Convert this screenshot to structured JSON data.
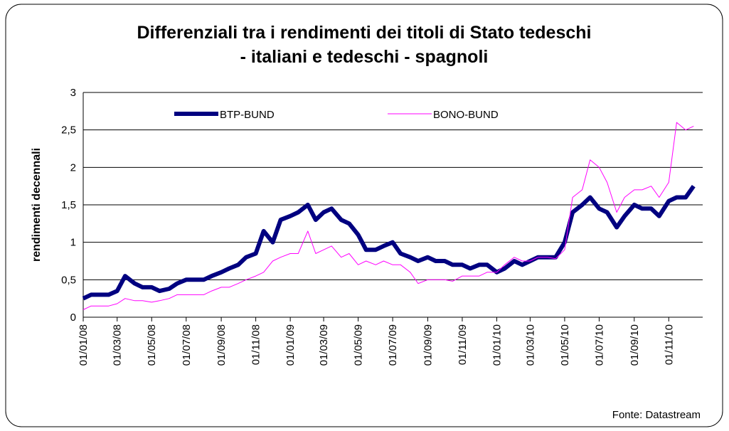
{
  "chart_data": {
    "type": "line",
    "title": "Differenziali tra i rendimenti dei titoli di Stato tedeschi - italiani e tedeschi - spagnoli",
    "ylabel": "rendimenti decennali",
    "source": "Fonte: Datastream",
    "x": [
      "2008-01-01",
      "2008-01-15",
      "2008-02-01",
      "2008-02-15",
      "2008-03-01",
      "2008-03-15",
      "2008-04-01",
      "2008-04-15",
      "2008-05-01",
      "2008-05-15",
      "2008-06-01",
      "2008-06-15",
      "2008-07-01",
      "2008-07-15",
      "2008-08-01",
      "2008-08-15",
      "2008-09-01",
      "2008-09-15",
      "2008-10-01",
      "2008-10-15",
      "2008-11-01",
      "2008-11-15",
      "2008-12-01",
      "2008-12-15",
      "2009-01-01",
      "2009-01-15",
      "2009-02-01",
      "2009-02-15",
      "2009-03-01",
      "2009-03-15",
      "2009-04-01",
      "2009-04-15",
      "2009-05-01",
      "2009-05-15",
      "2009-06-01",
      "2009-06-15",
      "2009-07-01",
      "2009-07-15",
      "2009-08-01",
      "2009-08-15",
      "2009-09-01",
      "2009-09-15",
      "2009-10-01",
      "2009-10-15",
      "2009-11-01",
      "2009-11-15",
      "2009-12-01",
      "2009-12-15",
      "2010-01-01",
      "2010-01-15",
      "2010-02-01",
      "2010-02-15",
      "2010-03-01",
      "2010-03-15",
      "2010-04-01",
      "2010-04-15",
      "2010-05-01",
      "2010-05-15",
      "2010-06-01",
      "2010-06-15",
      "2010-07-01",
      "2010-07-15",
      "2010-08-01",
      "2010-08-15",
      "2010-09-01",
      "2010-09-15",
      "2010-10-01",
      "2010-10-15",
      "2010-11-01",
      "2010-11-15",
      "2010-12-01",
      "2010-12-15"
    ],
    "series": [
      {
        "name": "BTP-BUND",
        "color": "#000080",
        "width": 6,
        "values": [
          0.25,
          0.3,
          0.3,
          0.3,
          0.35,
          0.55,
          0.45,
          0.4,
          0.4,
          0.35,
          0.38,
          0.45,
          0.5,
          0.5,
          0.5,
          0.55,
          0.6,
          0.65,
          0.7,
          0.8,
          0.85,
          1.15,
          1.0,
          1.3,
          1.35,
          1.4,
          1.5,
          1.3,
          1.4,
          1.45,
          1.3,
          1.25,
          1.1,
          0.9,
          0.9,
          0.95,
          1.0,
          0.85,
          0.8,
          0.75,
          0.8,
          0.75,
          0.75,
          0.7,
          0.7,
          0.65,
          0.7,
          0.7,
          0.6,
          0.65,
          0.75,
          0.7,
          0.75,
          0.8,
          0.8,
          0.8,
          1.0,
          1.4,
          1.5,
          1.6,
          1.45,
          1.4,
          1.2,
          1.35,
          1.5,
          1.45,
          1.45,
          1.35,
          1.55,
          1.6,
          1.6,
          1.75
        ]
      },
      {
        "name": "BONO-BUND",
        "color": "#ff00ff",
        "width": 1,
        "values": [
          0.1,
          0.15,
          0.15,
          0.15,
          0.18,
          0.25,
          0.22,
          0.22,
          0.2,
          0.22,
          0.25,
          0.3,
          0.3,
          0.3,
          0.3,
          0.35,
          0.4,
          0.4,
          0.45,
          0.5,
          0.55,
          0.6,
          0.75,
          0.8,
          0.85,
          0.85,
          1.15,
          0.85,
          0.9,
          0.95,
          0.8,
          0.85,
          0.7,
          0.75,
          0.7,
          0.75,
          0.7,
          0.7,
          0.6,
          0.45,
          0.5,
          0.5,
          0.5,
          0.48,
          0.55,
          0.55,
          0.55,
          0.6,
          0.6,
          0.7,
          0.8,
          0.75,
          0.75,
          0.8,
          0.8,
          0.78,
          0.9,
          1.6,
          1.7,
          2.1,
          2.0,
          1.8,
          1.4,
          1.6,
          1.7,
          1.7,
          1.75,
          1.6,
          1.8,
          2.6,
          2.5,
          2.55
        ]
      }
    ],
    "xlim": [
      "2008-01-01",
      "2010-12-31"
    ],
    "xticks": [
      {
        "value": "2008-01-01",
        "label": "01/01/08"
      },
      {
        "value": "2008-03-01",
        "label": "01/03/08"
      },
      {
        "value": "2008-05-01",
        "label": "01/05/08"
      },
      {
        "value": "2008-07-01",
        "label": "01/07/08"
      },
      {
        "value": "2008-09-01",
        "label": "01/09/08"
      },
      {
        "value": "2008-11-01",
        "label": "01/11/08"
      },
      {
        "value": "2009-01-01",
        "label": "01/01/09"
      },
      {
        "value": "2009-03-01",
        "label": "01/03/09"
      },
      {
        "value": "2009-05-01",
        "label": "01/05/09"
      },
      {
        "value": "2009-07-01",
        "label": "01/07/09"
      },
      {
        "value": "2009-09-01",
        "label": "01/09/09"
      },
      {
        "value": "2009-11-01",
        "label": "01/11/09"
      },
      {
        "value": "2010-01-01",
        "label": "01/01/10"
      },
      {
        "value": "2010-03-01",
        "label": "01/03/10"
      },
      {
        "value": "2010-05-01",
        "label": "01/05/10"
      },
      {
        "value": "2010-07-01",
        "label": "01/07/10"
      },
      {
        "value": "2010-09-01",
        "label": "01/09/10"
      },
      {
        "value": "2010-11-01",
        "label": "01/11/10"
      }
    ],
    "ylim": [
      0,
      3
    ],
    "yticks": [
      0,
      {
        "value": 0.5,
        "label": "0,5"
      },
      1,
      {
        "value": 1.5,
        "label": "1,5"
      },
      2,
      {
        "value": 2.5,
        "label": "2,5"
      },
      3
    ],
    "grid": true,
    "legend": "top"
  }
}
